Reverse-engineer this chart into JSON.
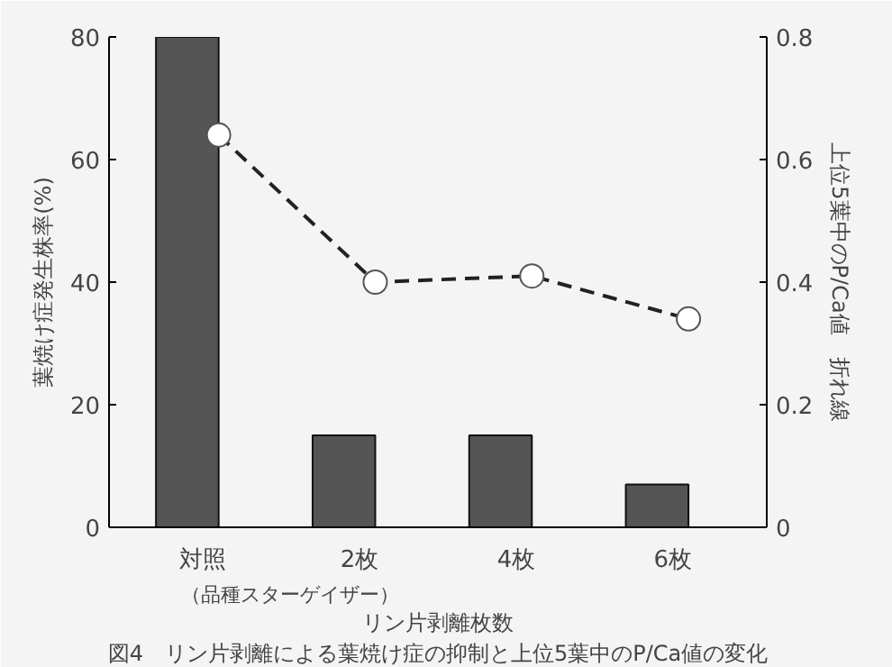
{
  "chart_data": {
    "type": "bar",
    "title": "図4　リン片剥離による葉焼け症の抑制と上位5葉中のP/Ca値の変化",
    "xlabel": "リン片剥離枚数",
    "ylabel": "葉焼け症発生株率(%)",
    "y2label": "上位5葉中のP/Ca値　折れ線",
    "annotations": [
      "（品種スターゲイザー）"
    ],
    "categories": [
      "対照",
      "2枚",
      "4枚",
      "6枚"
    ],
    "series": [
      {
        "color": "#555555",
        "values": [
          80,
          15,
          15,
          7
        ]
      },
      {
        "type": "line",
        "axis": "y2",
        "color": "#222222",
        "marker": "circle",
        "line_style": "dashed",
        "values": [
          0.64,
          0.4,
          0.41,
          0.34
        ]
      }
    ],
    "ylim": [
      0,
      80
    ],
    "yticks": [
      0,
      20,
      40,
      60,
      80
    ],
    "y2lim": [
      0,
      0.8
    ],
    "y2ticks": [
      0,
      0.2,
      0.4,
      0.6,
      0.8
    ],
    "grid": false
  }
}
